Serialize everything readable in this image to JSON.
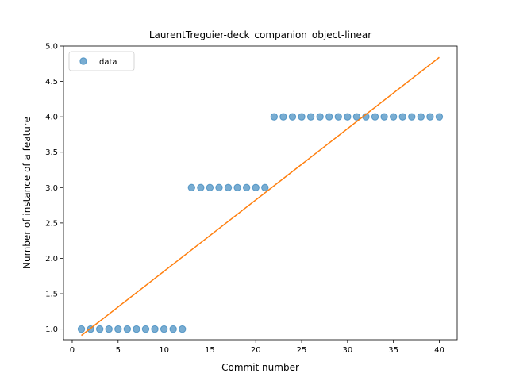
{
  "chart_data": {
    "type": "scatter",
    "title": "LaurentTreguier-deck_companion_object-linear",
    "xlabel": "Commit number",
    "ylabel": "Number of instance of a feature",
    "xlim": [
      -0.95,
      41.95
    ],
    "ylim": [
      0.85,
      5.0
    ],
    "xticks": [
      0,
      5,
      10,
      15,
      20,
      25,
      30,
      35,
      40
    ],
    "yticks": [
      1.0,
      1.5,
      2.0,
      2.5,
      3.0,
      3.5,
      4.0,
      4.5,
      5.0
    ],
    "xtick_labels": [
      "0",
      "5",
      "10",
      "15",
      "20",
      "25",
      "30",
      "35",
      "40"
    ],
    "ytick_labels": [
      "1.0",
      "1.5",
      "2.0",
      "2.5",
      "3.0",
      "3.5",
      "4.0",
      "4.5",
      "5.0"
    ],
    "grid": false,
    "legend": {
      "position": "upper-left",
      "entries": [
        "data"
      ]
    },
    "series": [
      {
        "name": "data",
        "kind": "scatter",
        "color": "#1f77b4",
        "x": [
          1,
          2,
          3,
          4,
          5,
          6,
          7,
          8,
          9,
          10,
          11,
          12,
          13,
          14,
          15,
          16,
          17,
          18,
          19,
          20,
          21,
          22,
          23,
          24,
          25,
          26,
          27,
          28,
          29,
          30,
          31,
          32,
          33,
          34,
          35,
          36,
          37,
          38,
          39,
          40
        ],
        "y": [
          1,
          1,
          1,
          1,
          1,
          1,
          1,
          1,
          1,
          1,
          1,
          1,
          3,
          3,
          3,
          3,
          3,
          3,
          3,
          3,
          3,
          4,
          4,
          4,
          4,
          4,
          4,
          4,
          4,
          4,
          4,
          4,
          4,
          4,
          4,
          4,
          4,
          4,
          4,
          4
        ]
      },
      {
        "kind": "line",
        "color": "#ff7f0e",
        "x": [
          1,
          40
        ],
        "y": [
          0.91,
          4.84
        ]
      }
    ]
  }
}
